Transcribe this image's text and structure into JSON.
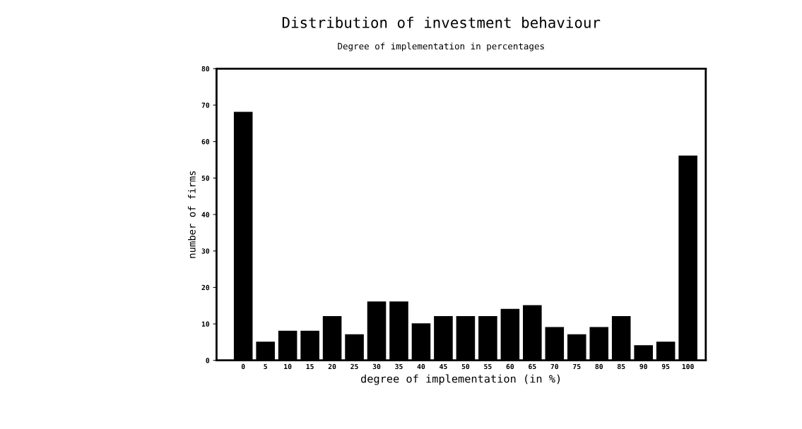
{
  "chart_data": {
    "type": "bar",
    "title": "Distribution of investment behaviour",
    "subtitle": "Degree of implementation in percentages",
    "xlabel": "degree of implementation (in %)",
    "ylabel": "number of firms",
    "categories": [
      "0",
      "5",
      "10",
      "15",
      "20",
      "25",
      "30",
      "35",
      "40",
      "45",
      "50",
      "55",
      "60",
      "65",
      "70",
      "75",
      "80",
      "85",
      "90",
      "95",
      "100"
    ],
    "values": [
      68,
      5,
      8,
      8,
      12,
      7,
      16,
      16,
      10,
      12,
      12,
      12,
      14,
      15,
      9,
      7,
      9,
      12,
      4,
      5,
      56
    ],
    "color": "#000000",
    "ylim": [
      0,
      80
    ],
    "yticks": [
      0,
      10,
      20,
      30,
      40,
      50,
      60,
      70,
      80
    ],
    "grid": false,
    "legend": false
  }
}
